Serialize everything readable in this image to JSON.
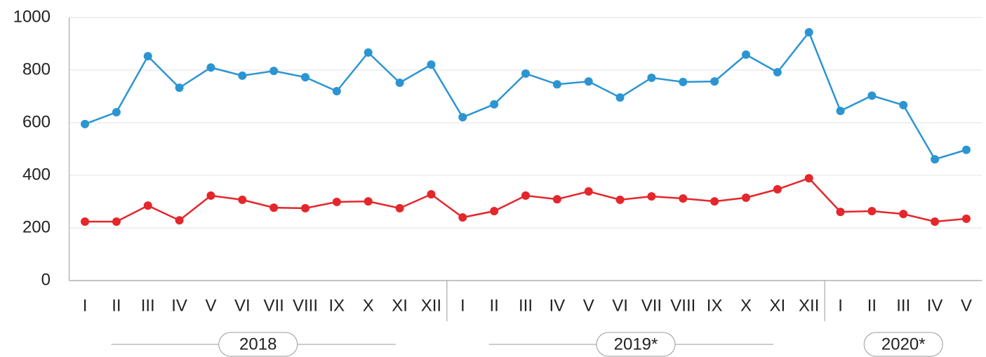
{
  "chart_data": {
    "type": "line",
    "groups": [
      {
        "label": "2018",
        "categories": [
          "I",
          "II",
          "III",
          "IV",
          "V",
          "VI",
          "VII",
          "VIII",
          "IX",
          "X",
          "XI",
          "XII"
        ]
      },
      {
        "label": "2019*",
        "categories": [
          "I",
          "II",
          "III",
          "IV",
          "V",
          "VI",
          "VII",
          "VIII",
          "IX",
          "X",
          "XI",
          "XII"
        ]
      },
      {
        "label": "2020*",
        "categories": [
          "I",
          "II",
          "III",
          "IV",
          "V"
        ]
      }
    ],
    "series": [
      {
        "color": "#2b95d2",
        "values": [
          595,
          640,
          853,
          733,
          810,
          779,
          797,
          773,
          720,
          867,
          752,
          821,
          621,
          670,
          787,
          746,
          757,
          696,
          771,
          755,
          757,
          859,
          792,
          944,
          645,
          703,
          667,
          461,
          497
        ]
      },
      {
        "color": "#e5262b",
        "values": [
          224,
          224,
          285,
          229,
          323,
          307,
          277,
          275,
          299,
          301,
          275,
          328,
          240,
          264,
          323,
          309,
          339,
          307,
          320,
          312,
          301,
          315,
          347,
          389,
          261,
          264,
          253,
          224,
          235
        ]
      }
    ],
    "ylim": [
      0,
      1000
    ],
    "yticks": [
      0,
      200,
      400,
      600,
      800,
      1000
    ],
    "grid": true
  }
}
